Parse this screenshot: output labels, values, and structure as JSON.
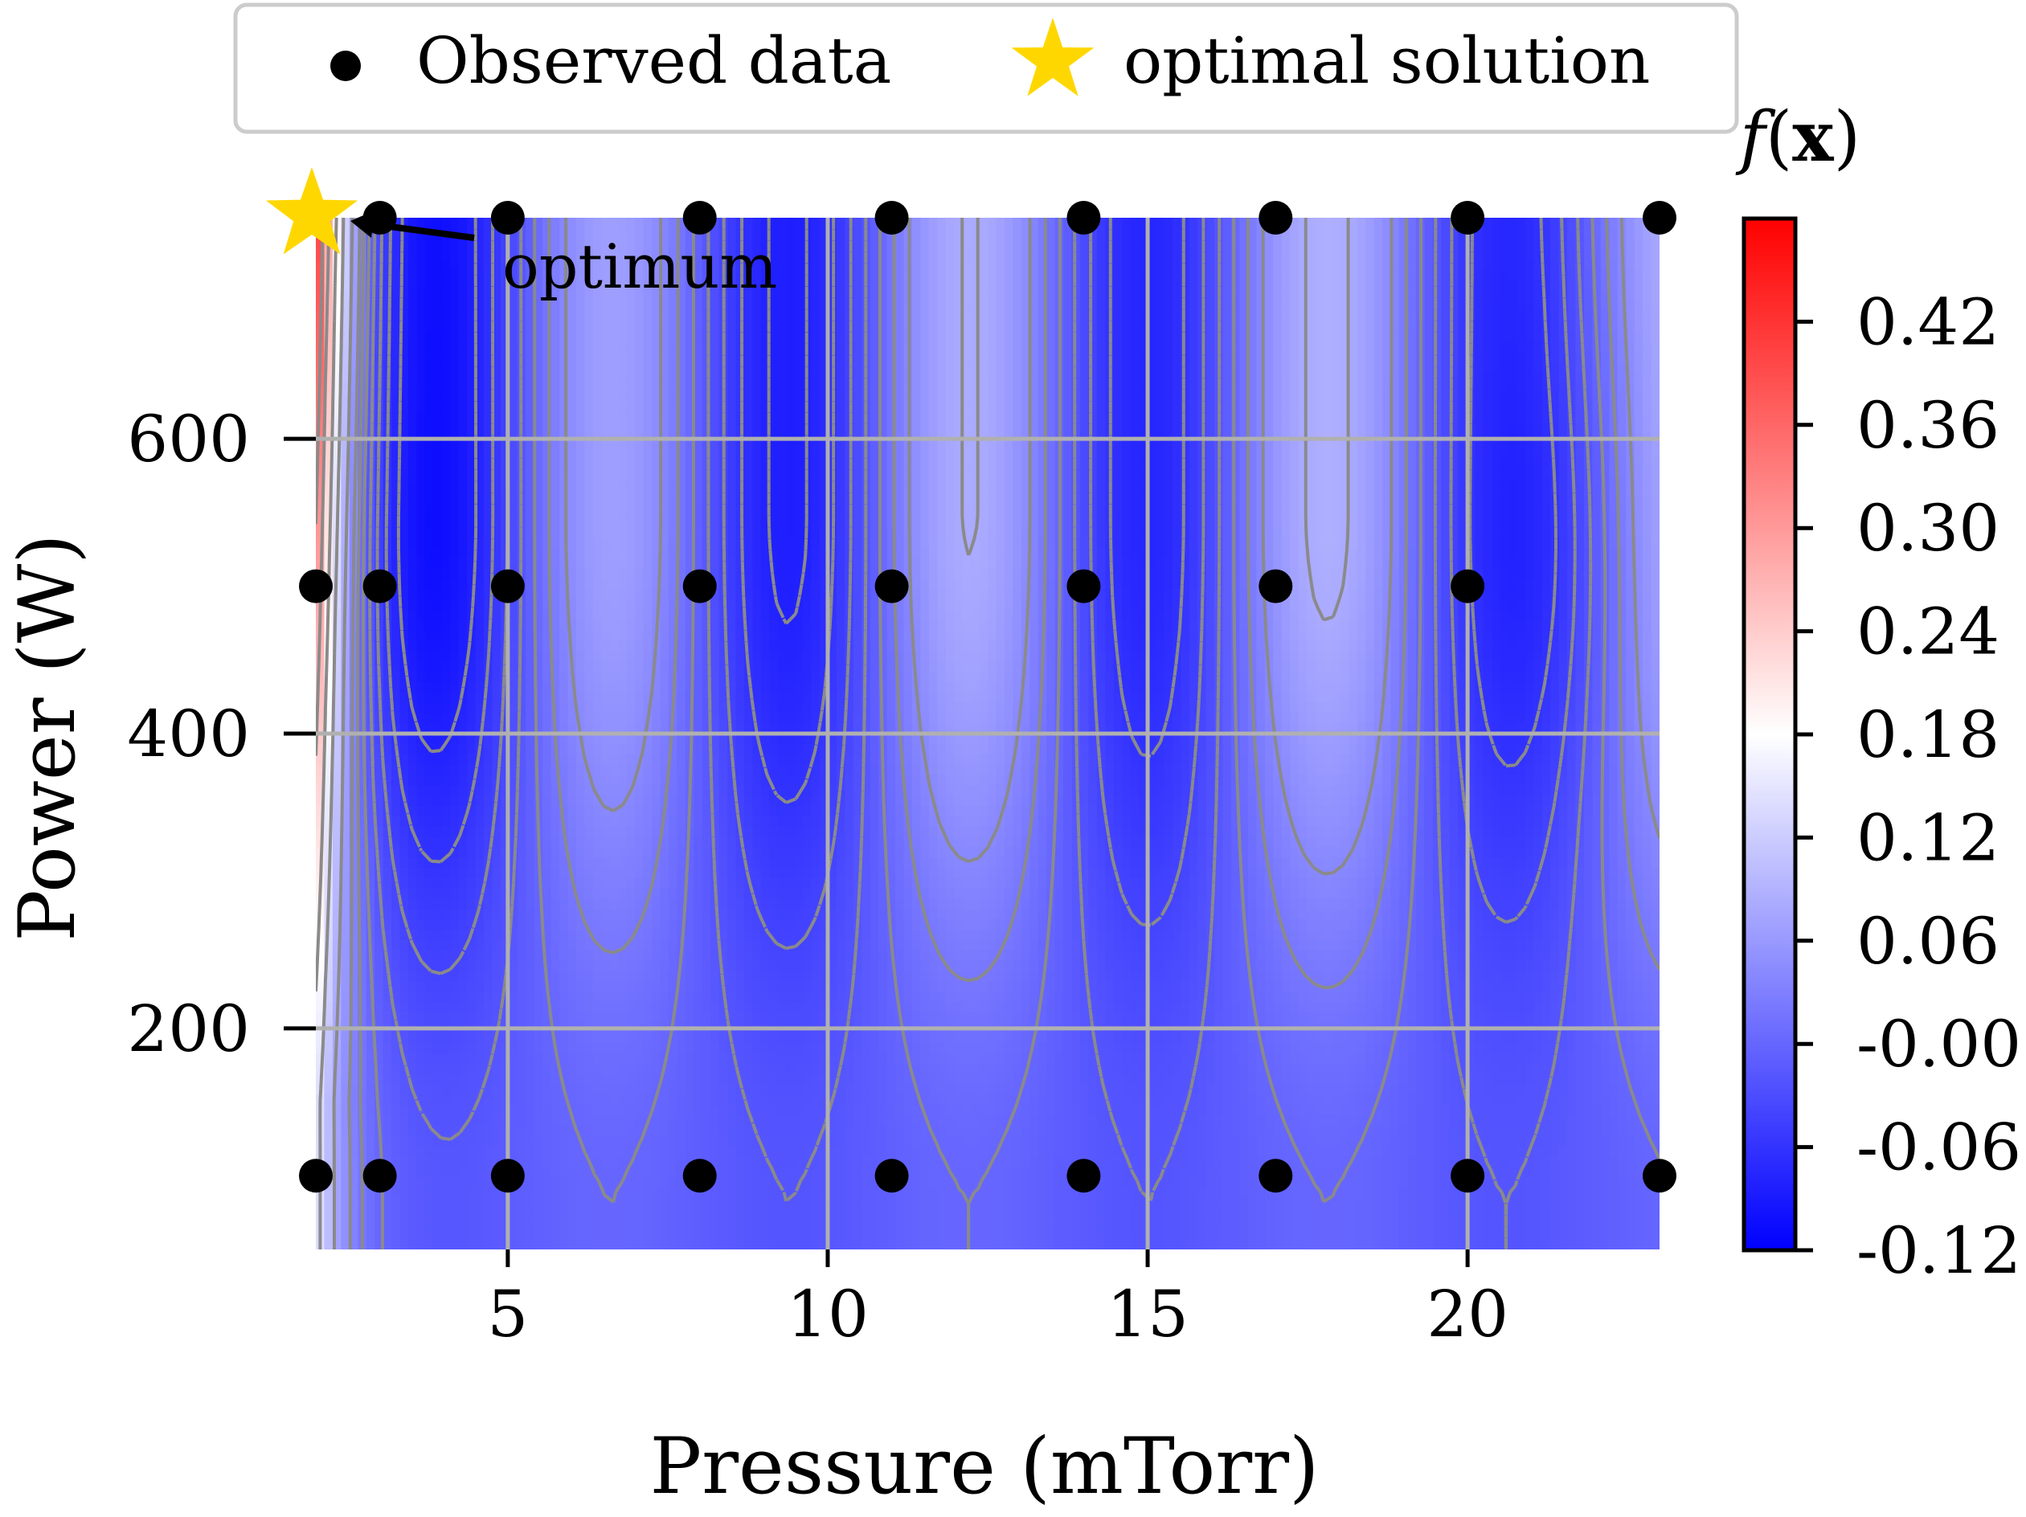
{
  "chart_data": {
    "type": "heatmap",
    "title": "",
    "xlabel": "Pressure (mTorr)",
    "ylabel": "Power (W)",
    "xlim": [
      2.0,
      23.0
    ],
    "ylim": [
      50,
      750
    ],
    "xticks": [
      5,
      10,
      15,
      20
    ],
    "yticks": [
      200,
      400,
      600
    ],
    "grid": true,
    "colorbar": {
      "label_base": "f",
      "label_var": "x",
      "range": [
        -0.12,
        0.48
      ],
      "ticks": [
        "0.42",
        "0.36",
        "0.30",
        "0.24",
        "0.18",
        "0.12",
        "0.06",
        "-0.00",
        "-0.06",
        "-0.12"
      ],
      "tick_values": [
        0.42,
        0.36,
        0.3,
        0.24,
        0.18,
        0.12,
        0.06,
        0.0,
        -0.06,
        -0.12
      ],
      "colors": {
        "low": "#0000ff",
        "mid": "#ffffff",
        "high": "#ff0000"
      }
    },
    "legend": {
      "placement": "top-center",
      "entries": [
        {
          "label": "Observed data",
          "marker": "dot",
          "color": "#000000"
        },
        {
          "label": "optimal solution",
          "marker": "star",
          "color": "#ffd700"
        }
      ]
    },
    "observed_points": [
      {
        "x": 3,
        "y": 750
      },
      {
        "x": 5,
        "y": 750
      },
      {
        "x": 8,
        "y": 750
      },
      {
        "x": 11,
        "y": 750
      },
      {
        "x": 14,
        "y": 750
      },
      {
        "x": 17,
        "y": 750
      },
      {
        "x": 20,
        "y": 750
      },
      {
        "x": 23,
        "y": 750
      },
      {
        "x": 2,
        "y": 500
      },
      {
        "x": 3,
        "y": 500
      },
      {
        "x": 5,
        "y": 500
      },
      {
        "x": 8,
        "y": 500
      },
      {
        "x": 11,
        "y": 500
      },
      {
        "x": 14,
        "y": 500
      },
      {
        "x": 17,
        "y": 500
      },
      {
        "x": 20,
        "y": 500
      },
      {
        "x": 2,
        "y": 100
      },
      {
        "x": 3,
        "y": 100
      },
      {
        "x": 5,
        "y": 100
      },
      {
        "x": 8,
        "y": 100
      },
      {
        "x": 11,
        "y": 100
      },
      {
        "x": 14,
        "y": 100
      },
      {
        "x": 17,
        "y": 100
      },
      {
        "x": 20,
        "y": 100
      },
      {
        "x": 23,
        "y": 100
      }
    ],
    "optimum": {
      "x": 2,
      "y": 750,
      "label": "optimum"
    }
  }
}
